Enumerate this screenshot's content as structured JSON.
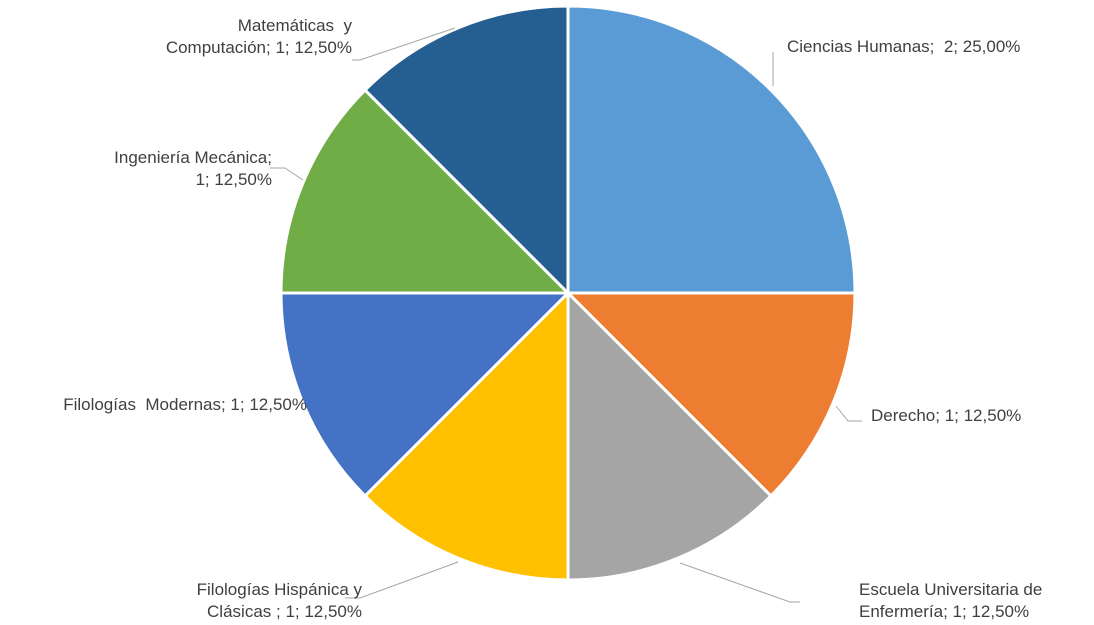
{
  "chart_data": {
    "type": "pie",
    "title": "",
    "categories": [
      "Ciencias Humanas",
      "Derecho",
      "Escuela Universitaria de Enfermería",
      "Filologías Hispánica y Clásicas ",
      "Filologías Modernas",
      "Ingeniería Mecánica",
      "Matemáticas y Computación"
    ],
    "values": [
      2,
      1,
      1,
      1,
      1,
      1,
      1
    ],
    "percentages": [
      "25,00%",
      "12,50%",
      "12,50%",
      "12,50%",
      "12,50%",
      "12,50%",
      "12,50%"
    ],
    "colors": [
      "#5b9bd5",
      "#ed7d31",
      "#a5a5a5",
      "#ffc000",
      "#4472c4",
      "#70ad47",
      "#255e91"
    ],
    "labels": [
      [
        "Ciencias Humanas;  2; 25,00%"
      ],
      [
        "Derecho; 1; 12,50%"
      ],
      [
        "Escuela Universitaria de",
        "Enfermería; 1; 12,50%"
      ],
      [
        "Filologías Hispánica y",
        "Clásicas ; 1; 12,50%"
      ],
      [
        "Filologías  Modernas; 1; 12,50%"
      ],
      [
        "Ingeniería Mecánica;",
        "1; 12,50%"
      ],
      [
        "Matemáticas  y",
        "Computación; 1; 12,50%"
      ]
    ],
    "start_angle_deg": 0,
    "direction": "clockwise",
    "legend": "none"
  }
}
